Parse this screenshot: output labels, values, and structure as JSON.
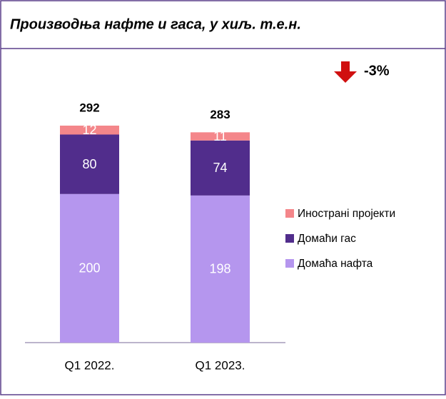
{
  "chart_data": {
    "type": "stacked_bar",
    "title": "Производња нафте и гаса, у хиљ. т.е.н.",
    "categories": [
      "Q1 2022.",
      "Q1 2023."
    ],
    "series": [
      {
        "name": "Домаћа нафта",
        "color": "#b596ee",
        "values": [
          200,
          198
        ]
      },
      {
        "name": "Домаћи гас",
        "color": "#512d8c",
        "values": [
          80,
          74
        ]
      },
      {
        "name": "Иностранi пројекти",
        "color": "#f4868a",
        "values": [
          12,
          11
        ]
      }
    ],
    "totals": [
      292,
      283
    ],
    "annotation": "-3%",
    "annotation_color": "#d01010"
  }
}
